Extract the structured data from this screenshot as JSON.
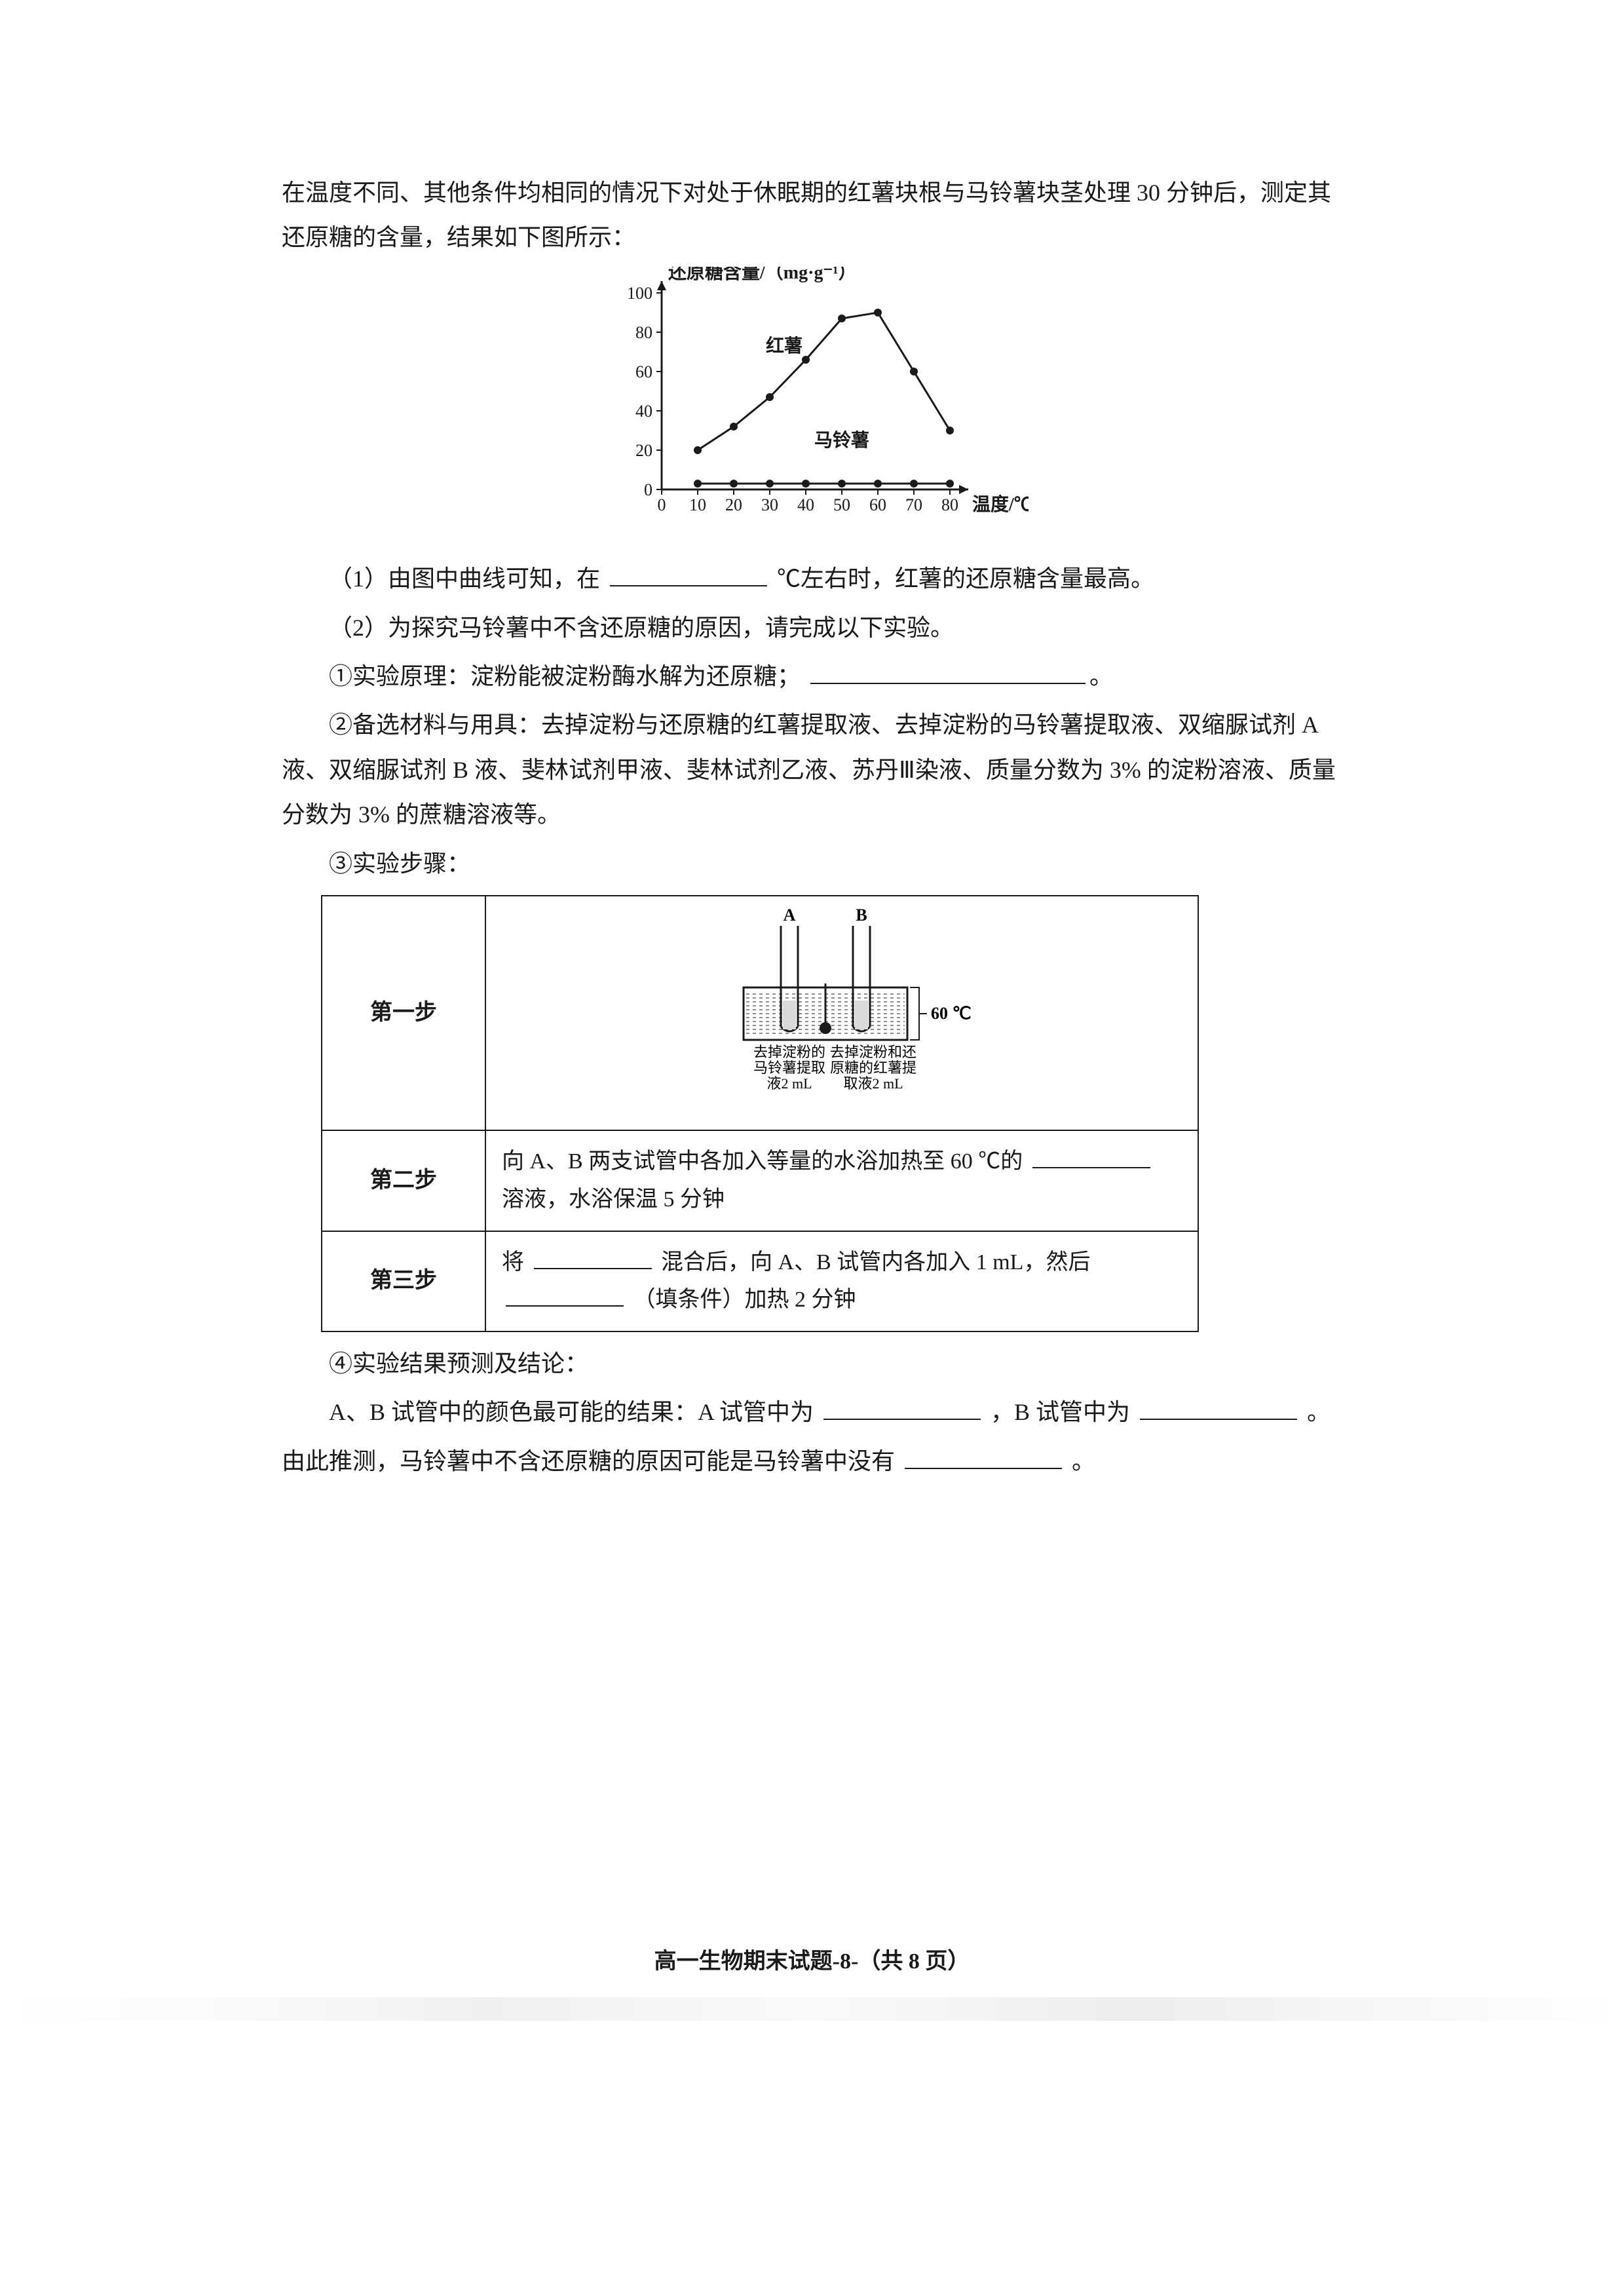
{
  "intro1": "在温度不同、其他条件均相同的情况下对处于休眠期的红薯块根与马铃薯块茎处理 30 分钟后，测定其还原糖的含量，结果如下图所示：",
  "chart": {
    "type": "line",
    "ylabel": "还原糖含量/（mg·g⁻¹）",
    "xlabel": "温度/℃",
    "xlim": [
      0,
      80
    ],
    "ylim": [
      0,
      100
    ],
    "xtick_step": 10,
    "ytick_step": 20,
    "xticks": [
      0,
      10,
      20,
      30,
      40,
      50,
      60,
      70,
      80
    ],
    "yticks": [
      0,
      20,
      40,
      60,
      80,
      100
    ],
    "background_color": "#ffffff",
    "axis_color": "#1a1a1a",
    "series": [
      {
        "name": "红薯",
        "label_pos": {
          "x": 34,
          "y": 70
        },
        "color": "#1a1a1a",
        "marker": "circle",
        "marker_size": 6,
        "line_width": 3,
        "points": [
          {
            "x": 10,
            "y": 20
          },
          {
            "x": 20,
            "y": 32
          },
          {
            "x": 30,
            "y": 47
          },
          {
            "x": 40,
            "y": 66
          },
          {
            "x": 50,
            "y": 87
          },
          {
            "x": 60,
            "y": 90
          },
          {
            "x": 70,
            "y": 60
          },
          {
            "x": 80,
            "y": 30
          }
        ]
      },
      {
        "name": "马铃薯",
        "label_pos": {
          "x": 50,
          "y": 22
        },
        "color": "#1a1a1a",
        "marker": "circle",
        "marker_size": 6,
        "line_width": 3,
        "points": [
          {
            "x": 10,
            "y": 3
          },
          {
            "x": 20,
            "y": 3
          },
          {
            "x": 30,
            "y": 3
          },
          {
            "x": 40,
            "y": 3
          },
          {
            "x": 50,
            "y": 3
          },
          {
            "x": 60,
            "y": 3
          },
          {
            "x": 70,
            "y": 3
          },
          {
            "x": 80,
            "y": 3
          }
        ]
      }
    ],
    "label_fontsize": 28,
    "tick_fontsize": 26
  },
  "q1_a": "（1）由图中曲线可知，在",
  "q1_b": "℃左右时，红薯的还原糖含量最高。",
  "q2": "（2）为探究马铃薯中不含还原糖的原因，请完成以下实验。",
  "q2_1": "①实验原理：淀粉能被淀粉酶水解为还原糖；",
  "q2_2": "②备选材料与用具：去掉淀粉与还原糖的红薯提取液、去掉淀粉的马铃薯提取液、双缩脲试剂 A 液、双缩脲试剂 B 液、斐林试剂甲液、斐林试剂乙液、苏丹Ⅲ染液、质量分数为 3% 的淀粉溶液、质量分数为 3% 的蔗糖溶液等。",
  "q2_3": "③实验步骤：",
  "table": {
    "step_labels": [
      "第一步",
      "第二步",
      "第三步"
    ],
    "step1": {
      "tube_a": "A",
      "tube_b": "B",
      "temp": "60 ℃",
      "captionA_l1": "去掉淀粉的",
      "captionA_l2": "马铃薯提取",
      "captionA_l3": "液2 mL",
      "captionB_l1": "去掉淀粉和还",
      "captionB_l2": "原糖的红薯提",
      "captionB_l3": "取液2 mL",
      "tube_fill_color": "#d9d9d9",
      "tube_stroke": "#1a1a1a",
      "bath_hatch_color": "#1a1a1a"
    },
    "step2_a": "向 A、B 两支试管中各加入等量的水浴加热至 60 ℃的",
    "step2_b": "溶液，水浴保温 5 分钟",
    "step3_a": "将",
    "step3_b": "混合后，向 A、B 试管内各加入 1 mL，然后",
    "step3_c": "（填条件）加热 2 分钟"
  },
  "q4": "④实验结果预测及结论：",
  "q4_line_a": "A、B 试管中的颜色最可能的结果：A 试管中为",
  "q4_line_b": "，B 试管中为",
  "q4_line_c": "。",
  "q4_line2_a": "由此推测，马铃薯中不含还原糖的原因可能是马铃薯中没有",
  "q4_line2_b": "。",
  "footer": "高一生物期末试题-8-（共 8 页）"
}
